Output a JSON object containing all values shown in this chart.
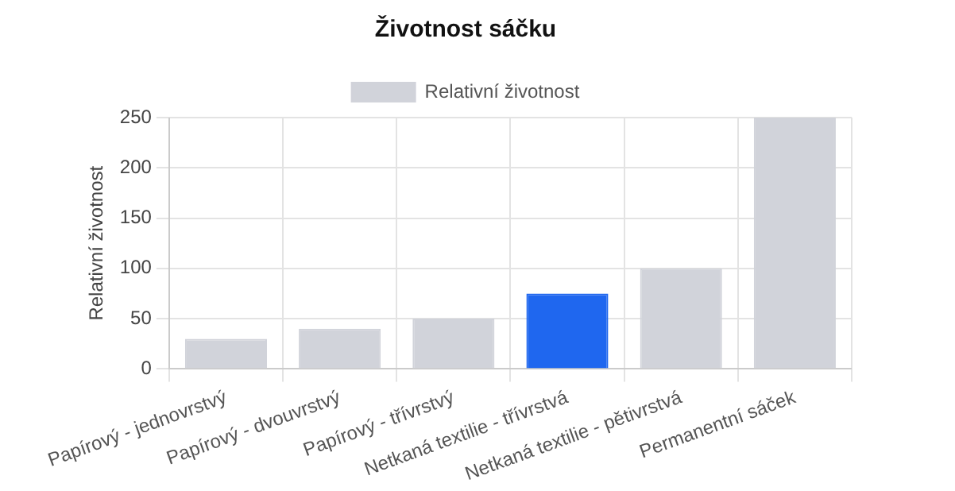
{
  "chart_data": {
    "type": "bar",
    "title": "Životnost sáčku",
    "ylabel": "Relativní životnost",
    "categories": [
      "Papírový - jednovrstvý",
      "Papírový - dvouvrstvý",
      "Papírový - třívrstvý",
      "Netkaná textilie - třívrstvá",
      "Netkaná textilie - pětivrstvá",
      "Permanentní sáček"
    ],
    "series": [
      {
        "name": "Relativní životnost",
        "color": "#d1d3da",
        "colors": [
          "#d1d3da",
          "#d1d3da",
          "#d1d3da",
          "#1f67ef",
          "#d1d3da",
          "#d1d3da"
        ],
        "values": [
          30,
          40,
          50,
          75,
          100,
          250
        ]
      }
    ],
    "ylim": [
      0,
      250
    ],
    "yticks": [
      0,
      50,
      100,
      150,
      200,
      250
    ],
    "grid": true,
    "legend": "top"
  }
}
